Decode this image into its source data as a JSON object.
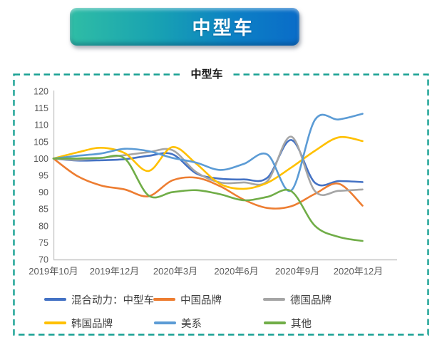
{
  "banner": {
    "title": "中型车"
  },
  "chart_data": {
    "type": "line",
    "title": "中型车",
    "x_tick_labels": [
      "2019年10月",
      "2019年12月",
      "2020年3月",
      "2020年6月",
      "2020年9月",
      "2020年12月"
    ],
    "x_categories": [
      "2019年10月",
      "2019年11月",
      "2019年12月",
      "2020年1月",
      "2020年2月",
      "2020年3月",
      "2020年4月",
      "2020年5月",
      "2020年6月",
      "2020年7月",
      "2020年8月",
      "2020年9月",
      "2020年10月",
      "2020年11月"
    ],
    "ylim": [
      70,
      120
    ],
    "y_tick_step": 5,
    "y_tick_labels": [
      "70",
      "75",
      "80",
      "85",
      "90",
      "95",
      "100",
      "105",
      "110",
      "115",
      "120"
    ],
    "grid": false,
    "smooth": true,
    "legend_position": "bottom",
    "series": [
      {
        "name": "混合动力：中型车",
        "color": "#4472C4",
        "values": [
          100,
          99.4,
          99.5,
          99.8,
          100.8,
          101.3,
          95.6,
          94.0,
          93.8,
          94.3,
          105.5,
          92.8,
          93.3,
          93.0
        ]
      },
      {
        "name": "中国品牌",
        "color": "#ED7D31",
        "values": [
          100,
          94.8,
          92.0,
          90.8,
          88.8,
          93.5,
          94.3,
          91.8,
          87.8,
          85.3,
          85.8,
          89.5,
          92.5,
          86.0
        ]
      },
      {
        "name": "德国品牌",
        "color": "#A5A5A5",
        "values": [
          100,
          99.6,
          100.2,
          101.0,
          101.9,
          102.5,
          96.0,
          92.9,
          92.9,
          93.3,
          106.5,
          90.3,
          90.4,
          90.8
        ]
      },
      {
        "name": "韩国品牌",
        "color": "#FFC000",
        "values": [
          100,
          101.8,
          103.2,
          101.6,
          96.3,
          103.4,
          98.5,
          92.5,
          91.0,
          92.8,
          97.3,
          102.3,
          106.3,
          105.2
        ]
      },
      {
        "name": "美系",
        "color": "#5B9BD5",
        "values": [
          100,
          100.8,
          101.5,
          102.9,
          102.2,
          100.2,
          98.8,
          96.6,
          98.4,
          101.2,
          90.5,
          111.5,
          111.6,
          113.3
        ]
      },
      {
        "name": "其他",
        "color": "#70AD47",
        "values": [
          100,
          100.0,
          100.2,
          100.0,
          89.0,
          90.0,
          90.6,
          89.4,
          87.6,
          88.6,
          90.3,
          80.0,
          76.7,
          75.5
        ]
      }
    ]
  },
  "colors": {
    "dashed_border": "#18a193",
    "axis_line": "#c6c6c6",
    "tick_text": "#595959",
    "legend_text": "#3f3f3f",
    "banner_left": "#2fbda5",
    "banner_right": "#0a6cc8"
  }
}
